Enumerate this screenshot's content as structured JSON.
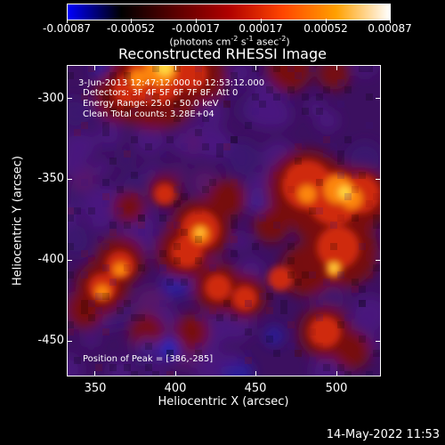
{
  "colorbar": {
    "tick_labels": [
      "-0.00087",
      "-0.00052",
      "-0.00017",
      "0.00017",
      "0.00052",
      "0.00087"
    ],
    "units_prefix": "(photons cm",
    "units_exp1": "-2",
    "units_mid1": " s",
    "units_exp2": "-1",
    "units_mid2": " asec",
    "units_exp3": "-2",
    "units_suffix": ")",
    "colors": [
      "#0000ff",
      "#000000",
      "#5a0000",
      "#b00000",
      "#ff4500",
      "#ffa000",
      "#ffffff"
    ]
  },
  "plot": {
    "title": "Reconstructed RHESSI Image",
    "xlabel": "Heliocentric X (arcsec)",
    "ylabel": "Heliocentric Y (arcsec)",
    "x_ticks": [
      "350",
      "400",
      "450",
      "500"
    ],
    "y_ticks": [
      "-300",
      "-350",
      "-400",
      "-450"
    ]
  },
  "annotations": {
    "time_range": "3-Jun-2013 12:47:12.000 to 12:53:12.000",
    "detectors": "Detectors: 3F 4F 5F 6F 7F 8F, Att 0",
    "energy": "Energy Range: 25.0 - 50.0 keV",
    "clean": "Clean     Total counts: 3.28E+04",
    "peak": "Position of Peak = [386,-285]"
  },
  "timestamp": "14-May-2022 11:53",
  "chart_data": {
    "type": "heatmap",
    "title": "Reconstructed RHESSI Image",
    "xlabel": "Heliocentric X (arcsec)",
    "ylabel": "Heliocentric Y (arcsec)",
    "xlim": [
      333,
      526
    ],
    "ylim": [
      -473,
      -282
    ],
    "x_ticks": [
      350,
      400,
      450,
      500
    ],
    "y_ticks": [
      -300,
      -350,
      -400,
      -450
    ],
    "colorbar_range": [
      -0.00087,
      0.00087
    ],
    "colorbar_ticks": [
      -0.00087,
      -0.00052,
      -0.00017,
      0.00017,
      0.00052,
      0.00087
    ],
    "peak_position": [
      386,
      -285
    ],
    "grid": false
  }
}
